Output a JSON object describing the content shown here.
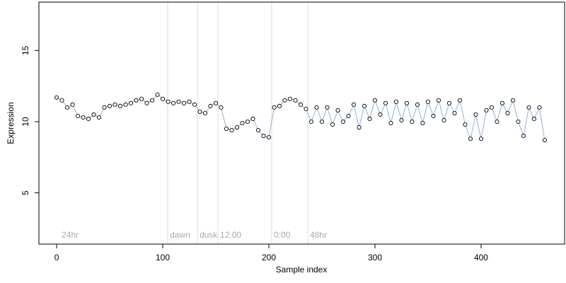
{
  "chart_data": {
    "type": "scatter",
    "x_label": "Sample index",
    "y_label": "Expression",
    "xlim": [
      -16.7,
      478.7
    ],
    "ylim": [
      1.4,
      18.4
    ],
    "xticks": [
      0,
      100,
      200,
      300,
      400
    ],
    "yticks": [
      5,
      10,
      15
    ],
    "point_fill": "#ffffff",
    "point_stroke": "#000000",
    "line_color": "#8fb0dd",
    "marker_color": "#dddddd",
    "markers": [
      {
        "x": 2.7,
        "label": "24hr"
      },
      {
        "x": 104.7,
        "label": "dawn"
      },
      {
        "x": 132.7,
        "label": "dusk"
      },
      {
        "x": 152,
        "label": "12:00"
      },
      {
        "x": 202.7,
        "label": "0:00"
      },
      {
        "x": 236.7,
        "label": "48hr"
      }
    ],
    "x": [
      0,
      5,
      10,
      15,
      20,
      25,
      30,
      35,
      40,
      45,
      50,
      55,
      60,
      65,
      70,
      75,
      80,
      85,
      90,
      95,
      100,
      105,
      110,
      115,
      120,
      125,
      130,
      135,
      140,
      145,
      150,
      155,
      160,
      165,
      170,
      175,
      180,
      185,
      190,
      195,
      200,
      205,
      210,
      215,
      220,
      225,
      230,
      235,
      240,
      245,
      250,
      255,
      260,
      265,
      270,
      275,
      280,
      285,
      290,
      295,
      300,
      305,
      310,
      315,
      320,
      325,
      330,
      335,
      340,
      345,
      350,
      355,
      360,
      365,
      370,
      375,
      380,
      385,
      390,
      395,
      400,
      405,
      410,
      415,
      420,
      425,
      430,
      435,
      440,
      445,
      450,
      455,
      460
    ],
    "values": [
      11.7,
      11.5,
      11.0,
      11.2,
      10.4,
      10.3,
      10.2,
      10.5,
      10.3,
      11.0,
      11.1,
      11.2,
      11.1,
      11.2,
      11.3,
      11.5,
      11.6,
      11.3,
      11.5,
      11.9,
      11.6,
      11.4,
      11.3,
      11.4,
      11.3,
      11.4,
      11.2,
      10.7,
      10.6,
      11.1,
      11.3,
      11.0,
      9.5,
      9.4,
      9.6,
      9.9,
      10.0,
      10.2,
      9.4,
      9.0,
      8.9,
      11.0,
      11.1,
      11.5,
      11.6,
      11.5,
      11.2,
      10.9,
      10.0,
      11.0,
      10.0,
      11.0,
      9.8,
      10.8,
      10.0,
      10.4,
      11.2,
      9.6,
      11.1,
      10.2,
      11.5,
      10.5,
      11.3,
      9.9,
      11.4,
      10.1,
      11.3,
      10.0,
      11.2,
      9.9,
      11.4,
      10.4,
      11.5,
      10.1,
      11.3,
      10.6,
      11.5,
      9.8,
      8.8,
      10.5,
      8.8,
      10.8,
      11.0,
      10.0,
      11.3,
      10.6,
      11.5,
      10.0,
      9.0,
      11.0,
      10.2,
      11.0,
      8.7
    ]
  }
}
